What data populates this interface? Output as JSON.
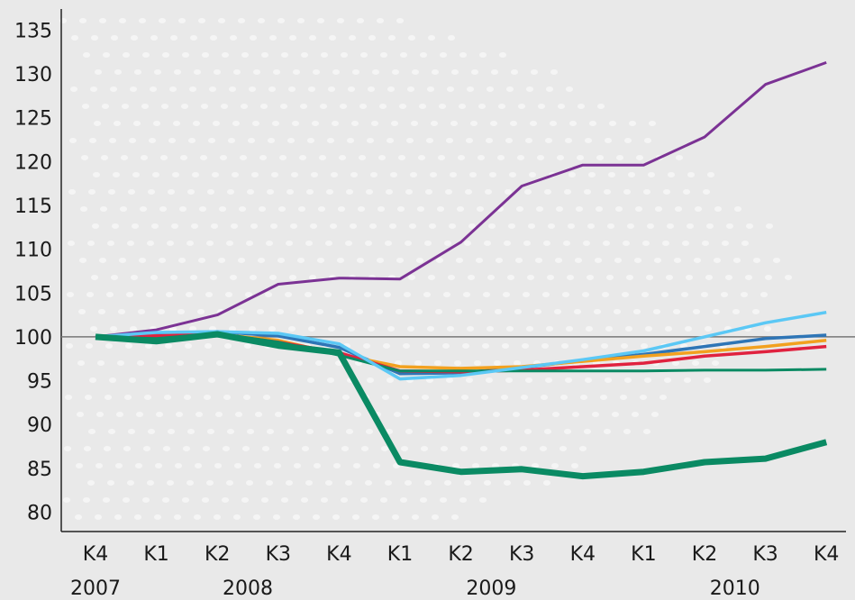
{
  "chart_data": {
    "type": "line",
    "title": "",
    "xlabel": "",
    "ylabel": "",
    "ylim": [
      80,
      135
    ],
    "y_ticks": [
      80,
      85,
      90,
      95,
      100,
      105,
      110,
      115,
      120,
      125,
      130,
      135
    ],
    "baseline": 100,
    "grid": false,
    "categories": [
      "K4",
      "K1",
      "K2",
      "K3",
      "K4",
      "K1",
      "K2",
      "K3",
      "K4",
      "K1",
      "K2",
      "K3",
      "K4"
    ],
    "year_labels": [
      {
        "label": "2007",
        "center_index": 0
      },
      {
        "label": "2008",
        "center_index": 2.5
      },
      {
        "label": "2009",
        "center_index": 6.5
      },
      {
        "label": "2010",
        "center_index": 10.5
      }
    ],
    "series": [
      {
        "color": "#7b3294",
        "width": 3,
        "values": [
          100,
          100.8,
          102.5,
          106,
          106.7,
          106.6,
          110.8,
          117.2,
          119.6,
          119.6,
          122.8,
          128.8,
          131.3
        ]
      },
      {
        "color": "#2e75b6",
        "width": 3.5,
        "values": [
          100,
          100.2,
          100.6,
          100.1,
          98.8,
          95.8,
          95.9,
          96.5,
          97.3,
          98,
          98.9,
          99.8,
          100.2
        ]
      },
      {
        "color": "#f2a11f",
        "width": 3.5,
        "values": [
          100,
          100.1,
          100.3,
          99.6,
          98,
          96.6,
          96.4,
          96.6,
          97.2,
          97.8,
          98.3,
          98.9,
          99.6
        ]
      },
      {
        "color": "#e0223f",
        "width": 3.5,
        "values": [
          100,
          100.1,
          100.3,
          99.4,
          98.2,
          96.1,
          96,
          96.2,
          96.6,
          97,
          97.8,
          98.3,
          98.9
        ]
      },
      {
        "color": "#0a8a63",
        "width": 3,
        "values": [
          100,
          99.8,
          100.4,
          99.4,
          97.9,
          96.1,
          96.1,
          96.1,
          96.1,
          96.1,
          96.2,
          96.2,
          96.3
        ]
      },
      {
        "color": "#5bc8f5",
        "width": 3.5,
        "values": [
          100,
          100.5,
          100.6,
          100.4,
          99.2,
          95.2,
          95.6,
          96.5,
          97.4,
          98.4,
          100,
          101.6,
          102.8
        ]
      },
      {
        "color": "#0a8a63",
        "width": 7,
        "values": [
          100,
          99.5,
          100.3,
          99,
          98.2,
          85.7,
          84.6,
          84.9,
          84.1,
          84.6,
          85.7,
          86.1,
          88
        ]
      }
    ]
  }
}
